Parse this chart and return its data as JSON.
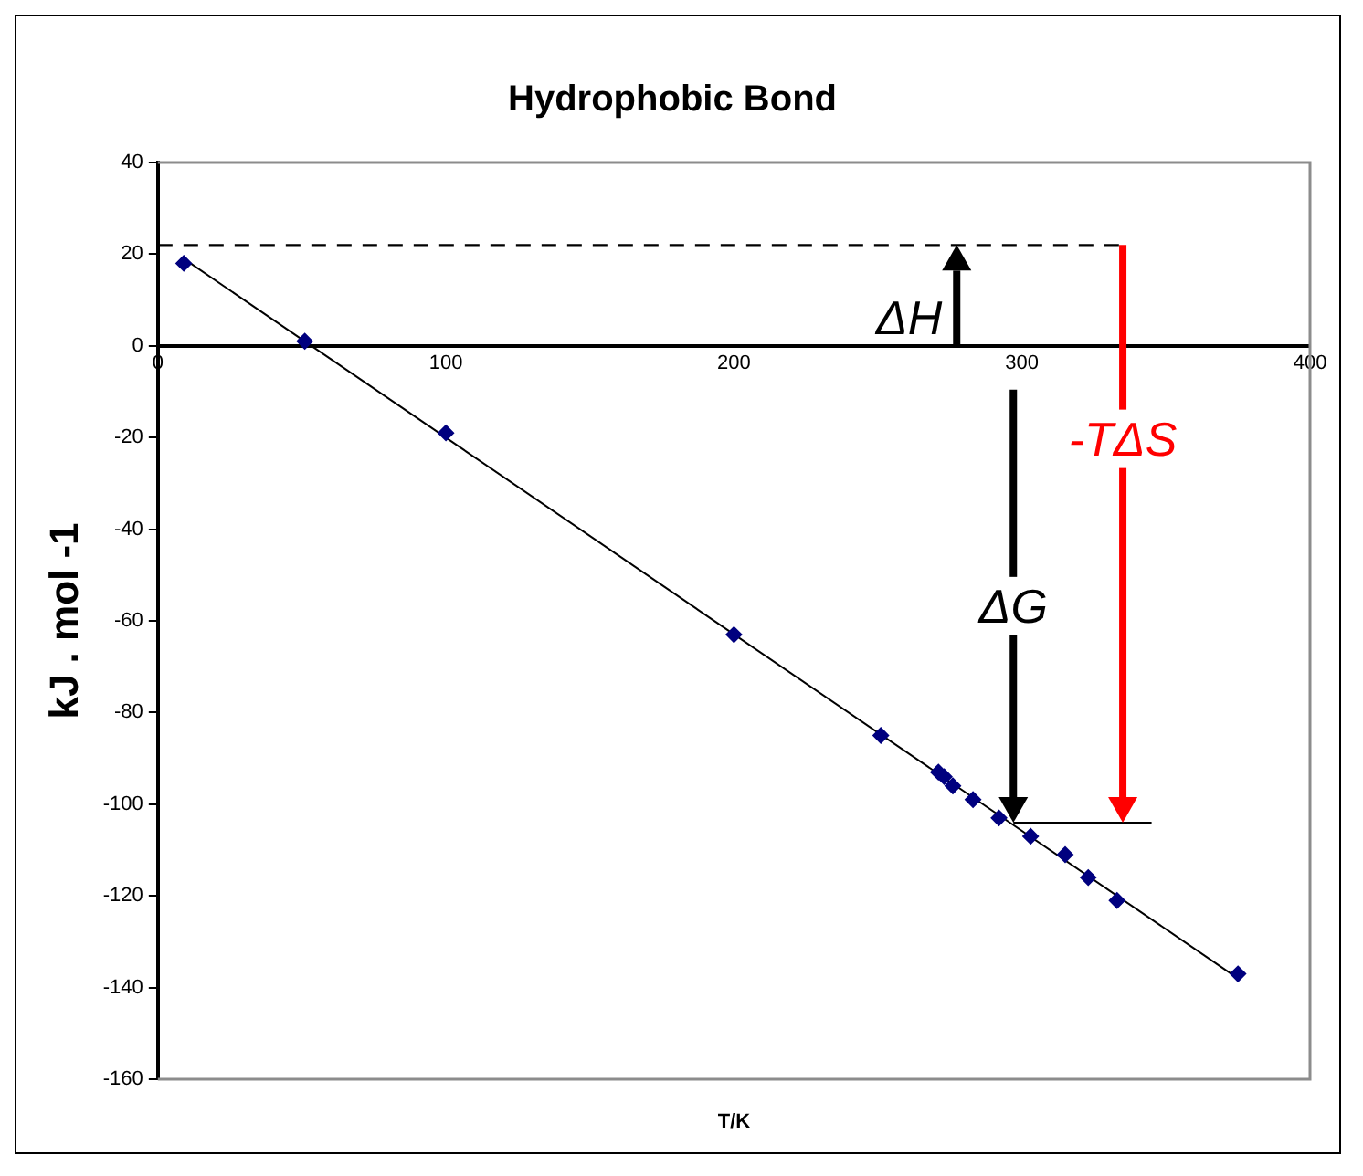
{
  "chart_data": {
    "type": "scatter",
    "title": "Hydrophobic Bond",
    "xlabel": "T/K",
    "ylabel": "kJ . mol -1",
    "xlim": [
      0,
      400
    ],
    "xticks": [
      0,
      100,
      200,
      300,
      400
    ],
    "ylim": [
      -160,
      40
    ],
    "yticks": [
      -160,
      -140,
      -120,
      -100,
      -80,
      -60,
      -40,
      -20,
      0,
      20,
      40
    ],
    "grid": false,
    "marker": "diamond",
    "annotations": [
      "ΔH",
      "ΔG",
      "-TΔS"
    ],
    "series": [
      {
        "color": "#00007f",
        "x": [
          9,
          51,
          100,
          200,
          251,
          271,
          273,
          276,
          283,
          292,
          303,
          315,
          323,
          333,
          375
        ],
        "values": [
          18,
          1,
          -19,
          -63,
          -85,
          -93,
          -94,
          -96,
          -99,
          -103,
          -107,
          -111,
          -116,
          -121,
          -137
        ]
      },
      {
        "type": "line",
        "marker": "none",
        "color": "#000000",
        "x": [
          9,
          375
        ],
        "values": [
          19,
          -138
        ]
      },
      {
        "type": "line",
        "marker": "none",
        "line_style": "dashed",
        "color": "#000000",
        "x": [
          0,
          335
        ],
        "values": [
          22,
          22
        ]
      },
      {
        "type": "line",
        "marker": "none",
        "color": "#000000",
        "x": [
          297,
          345
        ],
        "values": [
          -104,
          -104
        ]
      }
    ]
  }
}
